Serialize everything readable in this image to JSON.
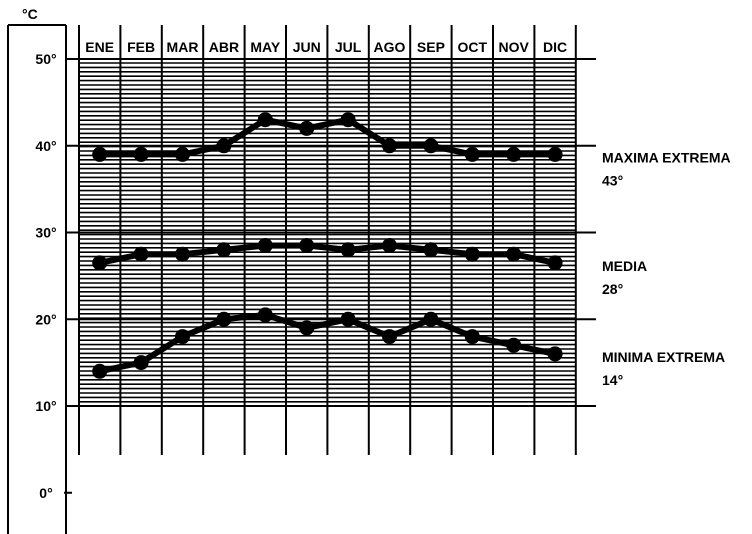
{
  "chart_data": {
    "type": "line",
    "unit": "°C",
    "categories": [
      "ENE",
      "FEB",
      "MAR",
      "ABR",
      "MAY",
      "JUN",
      "JUL",
      "AGO",
      "SEP",
      "OCT",
      "NOV",
      "DIC"
    ],
    "yticks": [
      {
        "value": 50,
        "label": "50°"
      },
      {
        "value": 40,
        "label": "40°"
      },
      {
        "value": 30,
        "label": "30°"
      },
      {
        "value": 20,
        "label": "20°"
      },
      {
        "value": 10,
        "label": "10°"
      },
      {
        "value": 0,
        "label": "0°"
      }
    ],
    "ylim": [
      0,
      50
    ],
    "hatched_range": [
      10,
      50
    ],
    "grid": true,
    "series": [
      {
        "name": "MAXIMA EXTREMA",
        "label_value": "43°",
        "values": [
          39,
          39,
          39,
          40,
          43,
          42,
          43,
          40,
          40,
          39,
          39,
          39
        ]
      },
      {
        "name": "MEDIA",
        "label_value": "28°",
        "values": [
          26.5,
          27.5,
          27.5,
          28,
          28.5,
          28.5,
          28,
          28.5,
          28,
          27.5,
          27.5,
          26.5
        ]
      },
      {
        "name": "MINIMA EXTREMA",
        "label_value": "14°",
        "values": [
          14,
          15,
          18,
          20,
          20.5,
          19,
          20,
          18,
          20,
          18,
          17,
          16
        ]
      }
    ],
    "colors": {
      "ink": "#000000",
      "background": "#ffffff"
    }
  }
}
